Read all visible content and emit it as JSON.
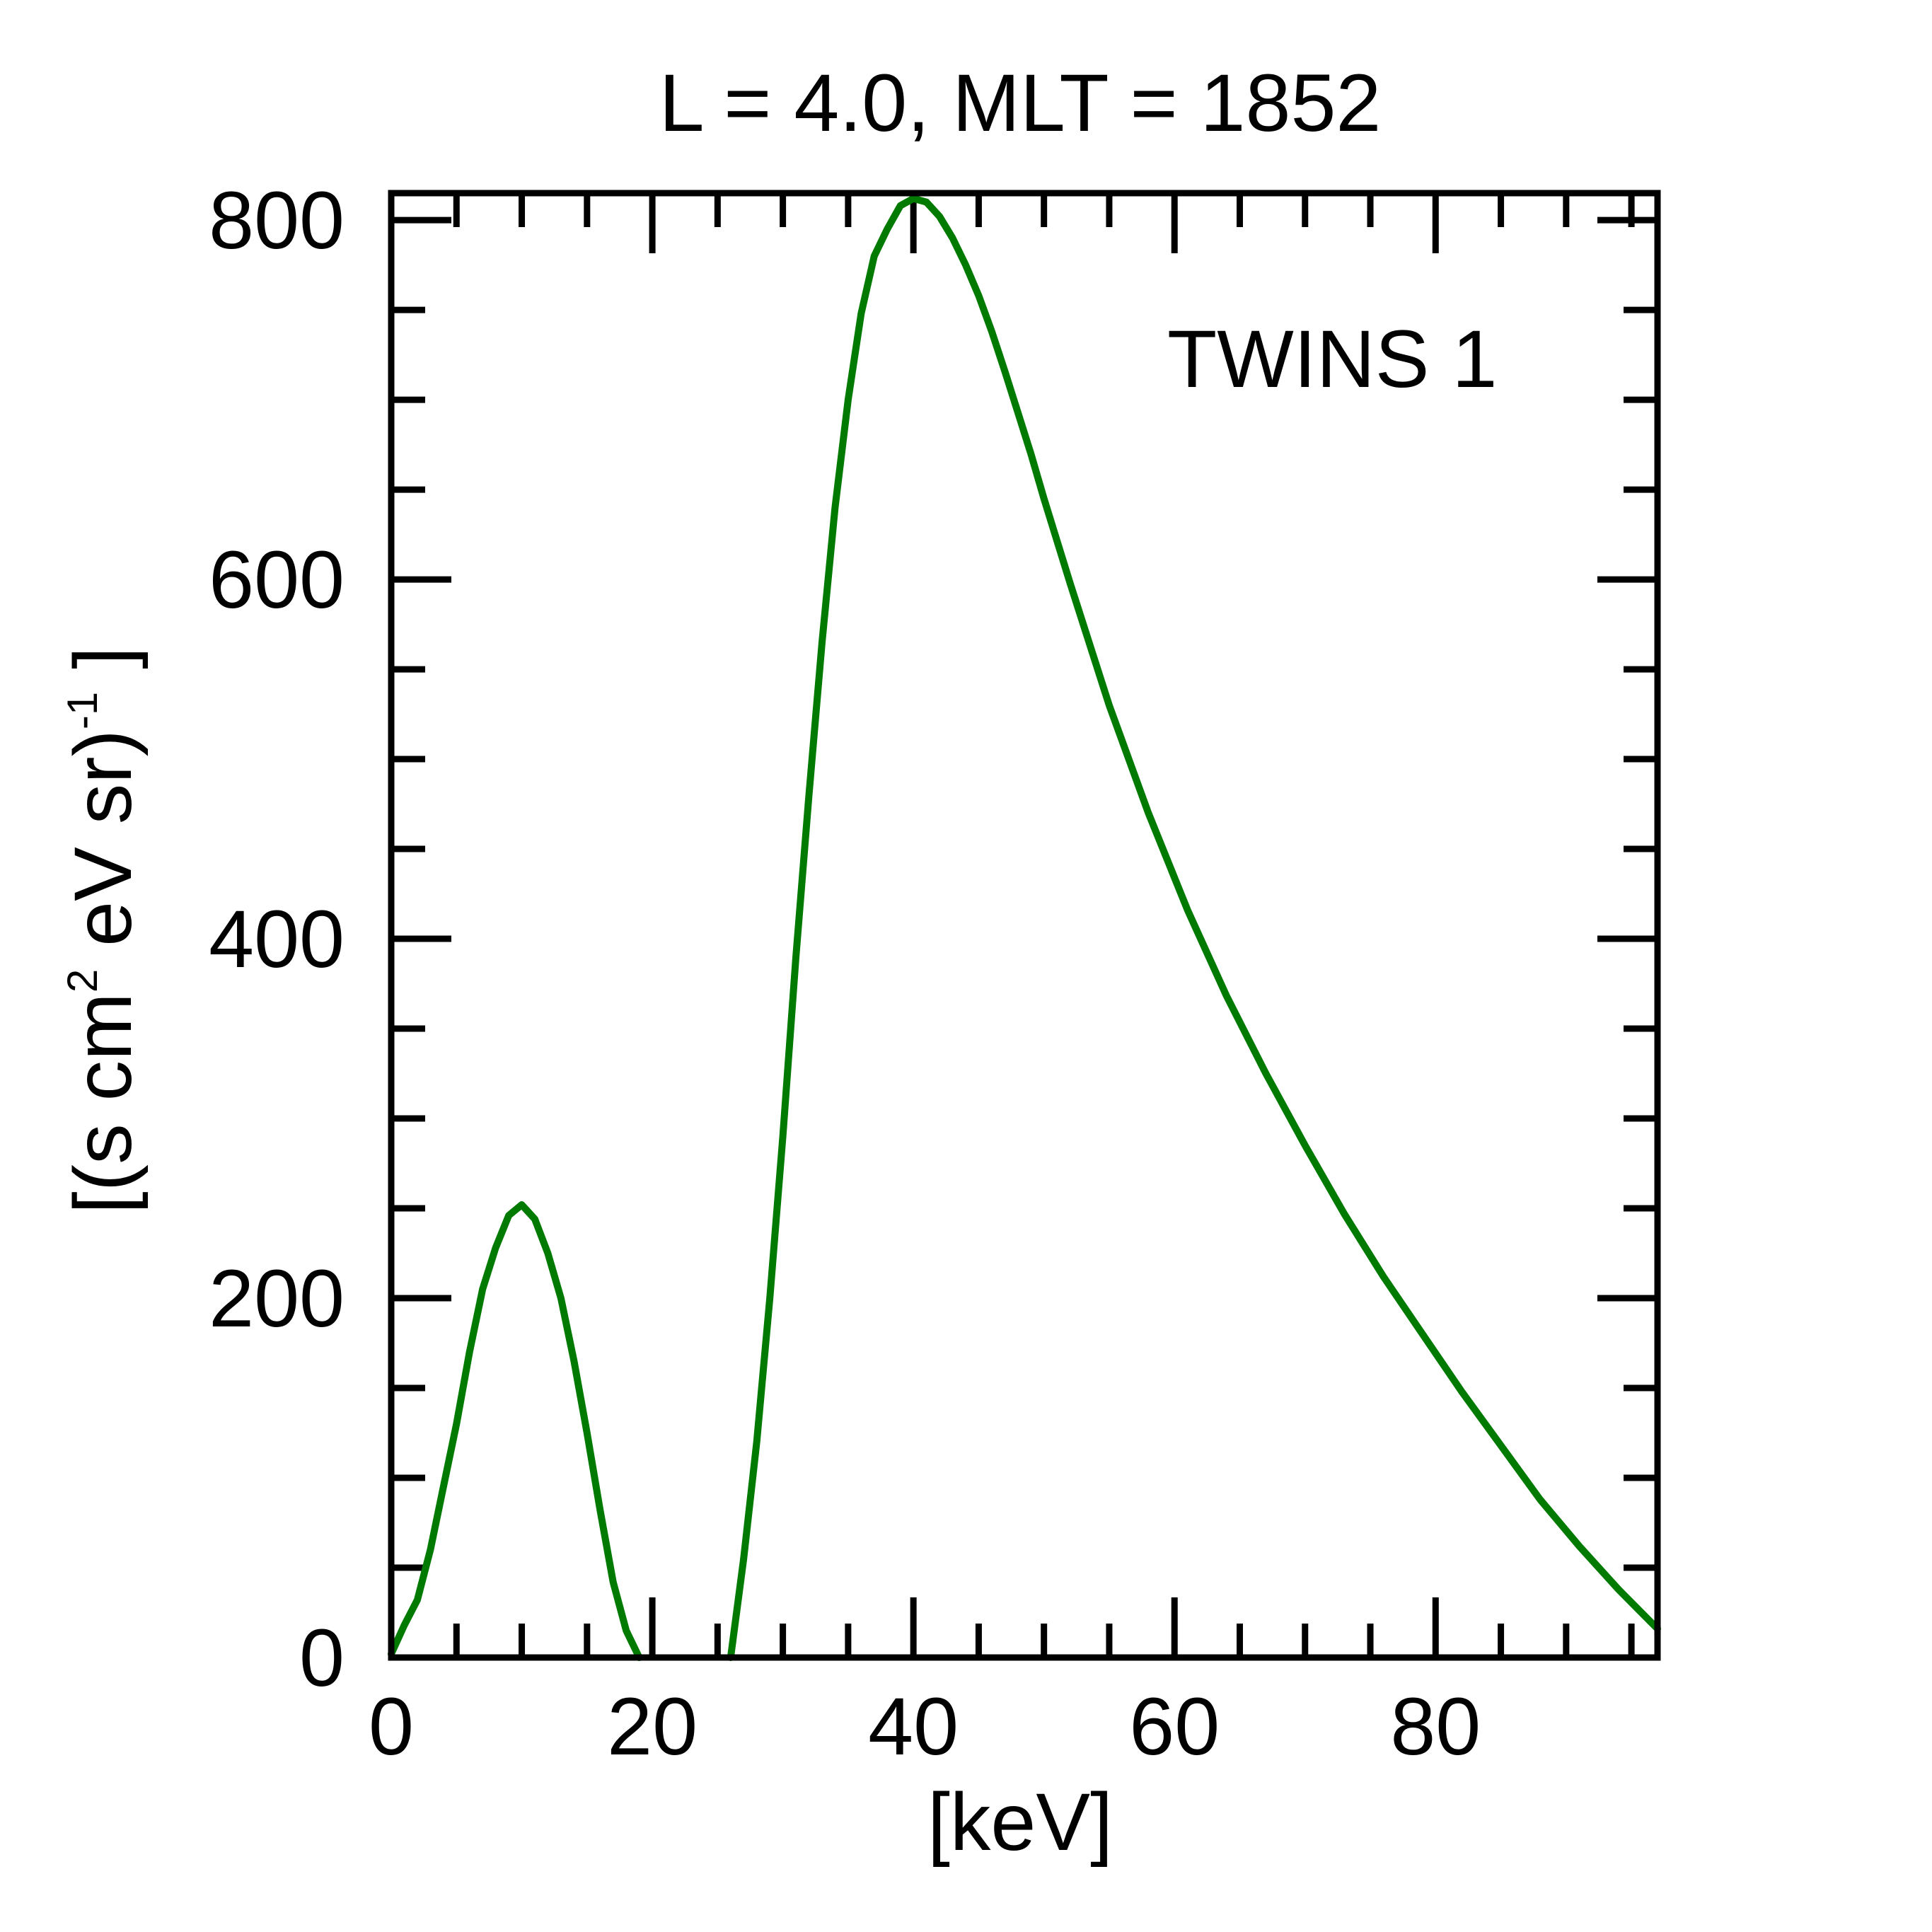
{
  "chart_data": {
    "type": "line",
    "title": "L =  4.0, MLT = 1852",
    "xlabel": "[keV]",
    "ylabel": {
      "prefix": "[(s cm",
      "sup1": "2",
      "middle": " eV sr)",
      "sup2": "-1",
      "suffix": " ]"
    },
    "xlim": [
      0,
      97
    ],
    "ylim": [
      0,
      815
    ],
    "x_ticks": [
      0,
      20,
      40,
      60,
      80
    ],
    "x_tick_labels": [
      "0",
      "20",
      "40",
      "60",
      "80"
    ],
    "x_minor_step": 5,
    "y_ticks": [
      0,
      200,
      400,
      600,
      800
    ],
    "y_tick_labels": [
      "0",
      "200",
      "400",
      "600",
      "800"
    ],
    "y_minor_step": 50,
    "grid": false,
    "legend": {
      "position": "top-right"
    },
    "series": [
      {
        "name": "TWINS 1",
        "color": "#007a00",
        "segments": [
          [
            [
              0,
              2
            ],
            [
              1,
              18
            ],
            [
              2,
              32
            ],
            [
              3,
              60
            ],
            [
              4,
              95
            ],
            [
              5,
              130
            ],
            [
              6,
              170
            ],
            [
              7,
              205
            ],
            [
              8,
              228
            ],
            [
              9,
              246
            ],
            [
              10,
              252
            ],
            [
              11,
              244
            ],
            [
              12,
              225
            ],
            [
              13,
              200
            ],
            [
              14,
              165
            ],
            [
              15,
              125
            ],
            [
              16,
              82
            ],
            [
              17,
              42
            ],
            [
              18,
              15
            ],
            [
              19,
              0
            ]
          ],
          [
            [
              26,
              0
            ],
            [
              27,
              55
            ],
            [
              28,
              120
            ],
            [
              29,
              200
            ],
            [
              30,
              290
            ],
            [
              31,
              390
            ],
            [
              32,
              480
            ],
            [
              33,
              565
            ],
            [
              34,
              640
            ],
            [
              35,
              700
            ],
            [
              36,
              748
            ],
            [
              37,
              780
            ],
            [
              38,
              795
            ],
            [
              39,
              808
            ],
            [
              40,
              812
            ],
            [
              41,
              810
            ],
            [
              42,
              802
            ],
            [
              43,
              790
            ],
            [
              44,
              775
            ],
            [
              45,
              758
            ],
            [
              46,
              738
            ],
            [
              47,
              716
            ],
            [
              48,
              693
            ],
            [
              49,
              670
            ],
            [
              50,
              645
            ],
            [
              52,
              598
            ],
            [
              55,
              530
            ],
            [
              58,
              470
            ],
            [
              61,
              416
            ],
            [
              64,
              368
            ],
            [
              67,
              325
            ],
            [
              70,
              285
            ],
            [
              73,
              247
            ],
            [
              76,
              212
            ],
            [
              79,
              180
            ],
            [
              82,
              148
            ],
            [
              85,
              118
            ],
            [
              88,
              88
            ],
            [
              91,
              62
            ],
            [
              94,
              38
            ],
            [
              97,
              16
            ]
          ]
        ]
      }
    ]
  }
}
